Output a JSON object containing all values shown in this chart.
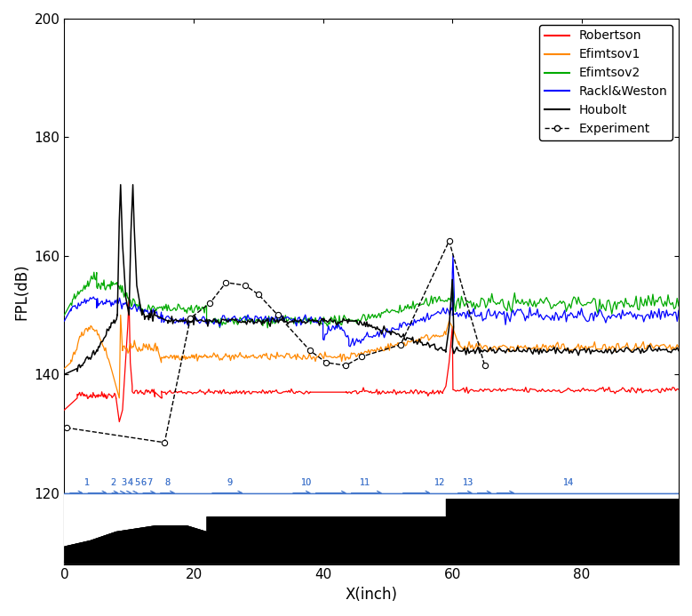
{
  "xlabel": "X(inch)",
  "ylabel": "FPL(dB)",
  "xlim": [
    0,
    95
  ],
  "ylim": [
    108,
    200
  ],
  "plot_ylim": [
    120,
    200
  ],
  "yticks": [
    120,
    140,
    160,
    180,
    200
  ],
  "xticks": [
    0,
    20,
    40,
    60,
    80
  ],
  "line_color_robertson": "#ff0000",
  "line_color_efimtsov1": "#ff8800",
  "line_color_efimtsov2": "#00aa00",
  "line_color_rackl": "#0000ff",
  "line_color_houbolt": "#000000",
  "line_color_experiment": "#000000",
  "line_color_sensor": "#4477cc",
  "sensor_labels": [
    "1",
    "2",
    "3",
    "4",
    "5",
    "6",
    "7",
    "8",
    "9",
    "10",
    "11",
    "12",
    "13",
    "14"
  ],
  "sensor_x": [
    3.5,
    7.5,
    9.2,
    10.2,
    11.2,
    12.2,
    13.2,
    16.0,
    25.5,
    37.5,
    46.5,
    58.0,
    62.5,
    78.0
  ],
  "body_profile_x": [
    0,
    0,
    4,
    8,
    14,
    19,
    22,
    22,
    59,
    59,
    62,
    95,
    95,
    0
  ],
  "body_profile_y": [
    108,
    111,
    112,
    113.5,
    114.5,
    114.5,
    113.5,
    116,
    116,
    119,
    119,
    119,
    108,
    108
  ],
  "legend_labels": [
    "Robertson",
    "Efimtsov1",
    "Efimtsov2",
    "Rackl&Weston",
    "Houbolt",
    "Experiment"
  ]
}
